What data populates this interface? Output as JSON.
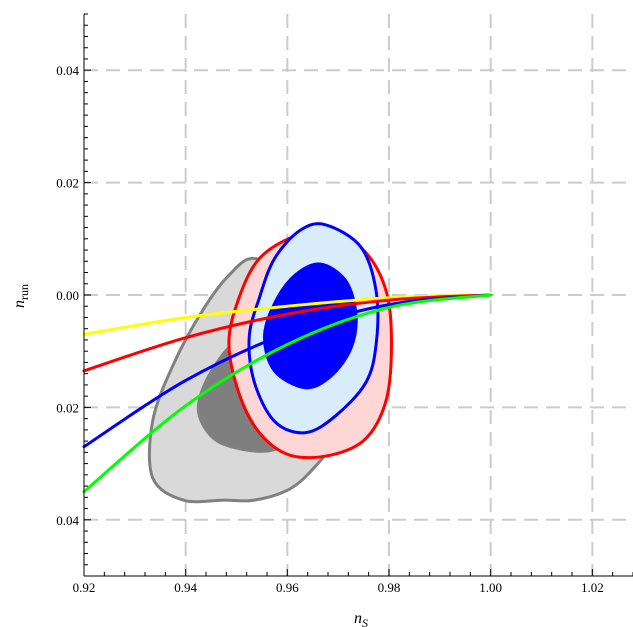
{
  "chart_data": {
    "type": "contour",
    "xlabel": "n",
    "xlabel_sub": "S",
    "ylabel": "n",
    "ylabel_sub": "run",
    "xlim": [
      0.92,
      1.028
    ],
    "ylim": [
      -0.05,
      0.05
    ],
    "grid": true,
    "xticks": [
      0.92,
      0.94,
      0.96,
      0.98,
      1.0,
      1.02
    ],
    "xtick_labels": [
      "0.92",
      "0.94",
      "0.96",
      "0.98",
      "1.00",
      "1.02"
    ],
    "yticks": [
      0.04,
      0.02,
      0.0,
      -0.02,
      -0.04
    ],
    "ytick_labels": [
      "0.04",
      "0.02",
      "0.00",
      "\u0007 0.02",
      "\u0007 0.04"
    ],
    "contours": [
      {
        "color": "#808080",
        "levels": [
          {
            "level": "outer",
            "fill": "#d9d9d9",
            "points": [
              [
                0.9475,
                -0.0365
              ],
              [
                0.9535,
                -0.0365
              ],
              [
                0.9605,
                -0.0345
              ],
              [
                0.9655,
                -0.0305
              ],
              [
                0.9685,
                -0.0265
              ],
              [
                0.9695,
                -0.0205
              ],
              [
                0.9685,
                -0.0125
              ],
              [
                0.9655,
                -0.0045
              ],
              [
                0.9605,
                0.0025
              ],
              [
                0.9535,
                0.0065
              ],
              [
                0.9485,
                0.0035
              ],
              [
                0.9435,
                -0.0025
              ],
              [
                0.9375,
                -0.0125
              ],
              [
                0.9335,
                -0.0225
              ],
              [
                0.9335,
                -0.0325
              ],
              [
                0.9395,
                -0.0365
              ]
            ]
          },
          {
            "level": "inner",
            "fill": "#7f7f7f",
            "points": [
              [
                0.9515,
                -0.0275
              ],
              [
                0.9575,
                -0.0275
              ],
              [
                0.9625,
                -0.0245
              ],
              [
                0.9645,
                -0.0185
              ],
              [
                0.9615,
                -0.0105
              ],
              [
                0.9555,
                -0.0065
              ],
              [
                0.9495,
                -0.0085
              ],
              [
                0.9445,
                -0.0145
              ],
              [
                0.9425,
                -0.0205
              ],
              [
                0.9455,
                -0.0255
              ]
            ]
          }
        ]
      },
      {
        "color": "#ff0000",
        "levels": [
          {
            "level": "outer",
            "fill": "#ffd6d6",
            "points": [
              [
                0.9685,
                -0.0285
              ],
              [
                0.9755,
                -0.0255
              ],
              [
                0.9795,
                -0.0185
              ],
              [
                0.9805,
                -0.0085
              ],
              [
                0.9795,
                0.0005
              ],
              [
                0.9755,
                0.0075
              ],
              [
                0.9685,
                0.0115
              ],
              [
                0.9615,
                0.0105
              ],
              [
                0.9545,
                0.0065
              ],
              [
                0.9505,
                -0.0005
              ],
              [
                0.9485,
                -0.0085
              ],
              [
                0.9505,
                -0.0175
              ],
              [
                0.9545,
                -0.0245
              ],
              [
                0.9605,
                -0.0285
              ]
            ]
          },
          {
            "level": "inner",
            "fill": "#ff8080",
            "points": [
              [
                0.9665,
                -0.0205
              ],
              [
                0.9715,
                -0.0185
              ],
              [
                0.9745,
                -0.0125
              ],
              [
                0.9745,
                -0.0055
              ],
              [
                0.9715,
                0.0005
              ],
              [
                0.9665,
                0.0035
              ],
              [
                0.9605,
                0.0025
              ],
              [
                0.9565,
                -0.0025
              ],
              [
                0.9545,
                -0.0095
              ],
              [
                0.9555,
                -0.0155
              ],
              [
                0.9605,
                -0.0205
              ]
            ]
          }
        ]
      },
      {
        "color": "#0000ff",
        "levels": [
          {
            "level": "outer",
            "fill": "#d8ecfb",
            "points": [
              [
                0.9635,
                -0.0245
              ],
              [
                0.9695,
                -0.0215
              ],
              [
                0.9755,
                -0.0155
              ],
              [
                0.9775,
                -0.0085
              ],
              [
                0.9775,
                0.0005
              ],
              [
                0.9745,
                0.0085
              ],
              [
                0.9675,
                0.0125
              ],
              [
                0.9625,
                0.0115
              ],
              [
                0.9575,
                0.0065
              ],
              [
                0.9545,
                -0.0005
              ],
              [
                0.9525,
                -0.0075
              ],
              [
                0.9535,
                -0.0155
              ],
              [
                0.9575,
                -0.0225
              ]
            ]
          },
          {
            "level": "inner",
            "fill": "#0000ff",
            "points": [
              [
                0.9635,
                -0.0165
              ],
              [
                0.9685,
                -0.0145
              ],
              [
                0.9725,
                -0.0095
              ],
              [
                0.9735,
                -0.0035
              ],
              [
                0.9715,
                0.0025
              ],
              [
                0.9665,
                0.0055
              ],
              [
                0.9615,
                0.0035
              ],
              [
                0.9575,
                -0.0015
              ],
              [
                0.9555,
                -0.0075
              ],
              [
                0.9575,
                -0.0135
              ]
            ]
          }
        ]
      }
    ],
    "series": [
      {
        "color": "#ffff00",
        "x": [
          0.92,
          0.94,
          0.96,
          0.98,
          1.0
        ],
        "y": [
          -0.007,
          -0.004,
          -0.002,
          -0.0005,
          0.0
        ]
      },
      {
        "color": "#ff0000",
        "x": [
          0.92,
          0.94,
          0.96,
          0.98,
          1.0
        ],
        "y": [
          -0.0135,
          -0.0076,
          -0.0034,
          -0.0009,
          0.0
        ]
      },
      {
        "color": "#0000ff",
        "x": [
          0.92,
          0.94,
          0.96,
          0.98,
          1.0
        ],
        "y": [
          -0.027,
          -0.0152,
          -0.0068,
          -0.0017,
          0.0
        ]
      },
      {
        "color": "#00ff00",
        "x": [
          0.92,
          0.94,
          0.96,
          0.98,
          1.0
        ],
        "y": [
          -0.035,
          -0.0197,
          -0.0088,
          -0.0022,
          0.0
        ]
      }
    ]
  }
}
